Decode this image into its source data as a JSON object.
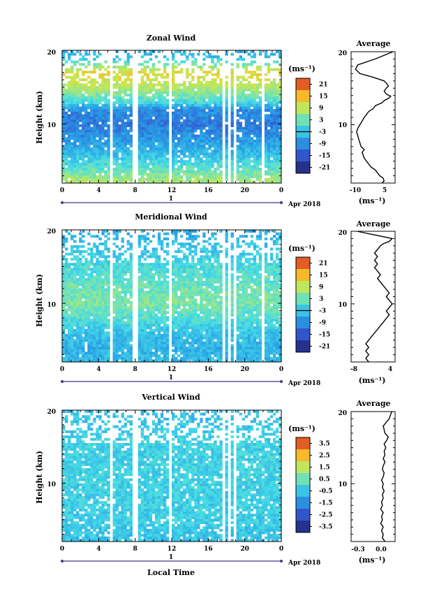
{
  "figure": {
    "time_axis_label": "Local Time",
    "date_label": "Apr 2018",
    "day_marker": "1",
    "time_ticks": [
      "0",
      "4",
      "8",
      "12",
      "16",
      "20",
      "0"
    ]
  },
  "panels": [
    {
      "title": "Zonal Wind",
      "ylabel": "Height (km)",
      "yticks": [
        "20",
        "10"
      ],
      "unit": "(ms⁻¹)",
      "colorbar_ticks": [
        "21",
        "15",
        "9",
        "3",
        "-3",
        "-9",
        "-15",
        "-21"
      ],
      "profile": {
        "title": "Average",
        "unit": "(ms⁻¹)",
        "xticks": [
          "-10",
          "5"
        ],
        "yticks": [
          "20",
          "10"
        ]
      }
    },
    {
      "title": "Meridional Wind",
      "ylabel": "Height (km)",
      "yticks": [
        "20",
        "10"
      ],
      "unit": "(ms⁻¹)",
      "colorbar_ticks": [
        "21",
        "15",
        "9",
        "3",
        "-3",
        "-9",
        "-15",
        "-21"
      ],
      "profile": {
        "title": "Average",
        "unit": "(ms⁻¹)",
        "xticks": [
          "-8",
          "4"
        ],
        "yticks": [
          "20",
          "10"
        ]
      }
    },
    {
      "title": "Vertical Wind",
      "ylabel": "Height (km)",
      "yticks": [
        "20",
        "10"
      ],
      "unit": "(ms⁻¹)",
      "colorbar_ticks": [
        "3.5",
        "2.5",
        "1.5",
        "0.5",
        "-0.5",
        "-1.5",
        "-2.5",
        "-3.5"
      ],
      "profile": {
        "title": "Average",
        "unit": "(ms⁻¹)",
        "xticks": [
          "-0.3",
          "0.0"
        ],
        "yticks": [
          "20",
          "10"
        ]
      }
    }
  ],
  "chart_data": [
    {
      "type": "heatmap",
      "title": "Zonal Wind",
      "xlabel": "Local Time",
      "ylabel": "Height (km)",
      "unit": "ms-1",
      "xlim": [
        0,
        24
      ],
      "ylim": [
        2,
        20
      ],
      "clim": [
        -24,
        24
      ],
      "data_gaps_hours": [
        5.3,
        8.0,
        11.9,
        17.6,
        18.3,
        19.0,
        21.9
      ],
      "mean_by_height": {
        "height_km": [
          2,
          4,
          6,
          8,
          10,
          12,
          13,
          15,
          17,
          18,
          19,
          20
        ],
        "value": [
          8,
          2,
          -4,
          -8,
          -11,
          -9,
          0,
          8,
          12,
          5,
          -3,
          -6
        ]
      }
    },
    {
      "type": "line",
      "title": "Average",
      "xlabel": "(ms-1)",
      "ylabel": "Height (km)",
      "xlim": [
        -13,
        7
      ],
      "ylim": [
        2,
        20
      ],
      "series": [
        {
          "x": [
            1,
            2,
            1.5,
            0,
            -1,
            -2,
            -4,
            -5,
            -6,
            -7,
            -7.5,
            -8,
            -7,
            -8.5,
            -9,
            -9.5,
            -10,
            -10.5,
            -10,
            -9,
            -8,
            -7,
            -6,
            -5,
            -3,
            -2,
            1,
            2,
            4,
            5,
            3,
            2,
            3,
            4,
            3,
            2,
            -3,
            -9,
            -11,
            -10,
            -2,
            6
          ],
          "y": [
            2,
            2.3,
            2.7,
            3,
            3.4,
            3.8,
            4.2,
            4.6,
            5,
            5.4,
            5.8,
            6.2,
            6.6,
            7,
            7.5,
            8,
            8.5,
            9,
            9.5,
            10,
            10.5,
            11,
            11.4,
            11.8,
            12.2,
            12.6,
            13,
            13.3,
            13.6,
            13.9,
            14.2,
            14.6,
            15,
            15.3,
            15.7,
            16,
            16.5,
            17,
            17.6,
            18.2,
            19,
            20
          ]
        }
      ]
    },
    {
      "type": "heatmap",
      "title": "Meridional Wind",
      "xlabel": "Local Time",
      "ylabel": "Height (km)",
      "unit": "ms-1",
      "xlim": [
        0,
        24
      ],
      "ylim": [
        2,
        20
      ],
      "clim": [
        -24,
        24
      ],
      "data_gaps_hours": [
        5.3,
        8.0,
        11.9,
        17.6,
        18.3,
        19.0,
        21.9
      ],
      "mean_by_height": {
        "height_km": [
          2,
          4,
          6,
          8,
          10,
          12,
          14,
          16,
          18,
          20
        ],
        "value": [
          -4,
          -5,
          -3,
          1,
          4,
          3,
          1,
          -1,
          -3,
          -6
        ]
      }
    },
    {
      "type": "line",
      "title": "Average",
      "xlabel": "(ms-1)",
      "ylabel": "Height (km)",
      "xlim": [
        -10,
        5
      ],
      "ylim": [
        2,
        20
      ],
      "series": [
        {
          "x": [
            -4,
            -5,
            -4,
            -5,
            -4,
            -5,
            -4,
            -3,
            -2,
            -1,
            0,
            1,
            2,
            3,
            2,
            3,
            4,
            3,
            2,
            3,
            2,
            1,
            0,
            -1,
            0,
            -1,
            -2,
            -1,
            -2,
            -1,
            -2,
            -1,
            0,
            1,
            3,
            4,
            -2,
            -8
          ],
          "y": [
            2,
            2.5,
            3,
            3.5,
            4,
            4.5,
            5,
            5.5,
            6,
            6.5,
            7,
            7.5,
            8,
            8.5,
            9,
            9.5,
            10,
            10.5,
            11,
            11.5,
            12,
            12.5,
            13,
            13.5,
            14,
            14.5,
            15,
            15.5,
            16,
            16.5,
            17,
            17.5,
            18,
            18.3,
            18.6,
            19,
            19.5,
            20
          ]
        }
      ]
    },
    {
      "type": "heatmap",
      "title": "Vertical Wind",
      "xlabel": "Local Time",
      "ylabel": "Height (km)",
      "unit": "ms-1",
      "xlim": [
        0,
        24
      ],
      "ylim": [
        2,
        20
      ],
      "clim": [
        -4,
        4
      ],
      "data_gaps_hours": [
        5.3,
        8.0,
        11.9,
        17.6,
        18.3,
        19.0
      ],
      "mean_by_height": {
        "height_km": [
          2,
          5,
          10,
          15,
          18,
          20
        ],
        "value": [
          -0.5,
          -0.3,
          -0.2,
          -0.2,
          -0.4,
          -0.6
        ]
      }
    },
    {
      "type": "line",
      "title": "Average",
      "xlabel": "(ms-1)",
      "ylabel": "Height (km)",
      "xlim": [
        -0.42,
        0.1
      ],
      "ylim": [
        2,
        20
      ],
      "series": [
        {
          "x": [
            -0.02,
            -0.05,
            -0.04,
            -0.06,
            -0.04,
            -0.07,
            -0.05,
            -0.06,
            -0.04,
            -0.07,
            -0.05,
            -0.06,
            -0.04,
            -0.05,
            -0.03,
            -0.05,
            -0.04,
            -0.06,
            -0.04,
            -0.03,
            -0.05,
            -0.04,
            -0.02,
            -0.04,
            -0.02,
            -0.03,
            -0.01,
            -0.03,
            0.0,
            0.02,
            -0.02,
            -0.04,
            0.03,
            0.06
          ],
          "y": [
            2,
            2.5,
            3,
            3.5,
            4,
            4.5,
            5,
            5.5,
            6,
            6.5,
            7,
            7.5,
            8,
            8.5,
            9,
            9.5,
            10,
            10.5,
            11,
            11.5,
            12,
            12.5,
            13,
            13.5,
            14,
            14.5,
            15,
            15.5,
            16,
            16.5,
            17,
            18,
            19,
            20
          ]
        }
      ]
    }
  ]
}
